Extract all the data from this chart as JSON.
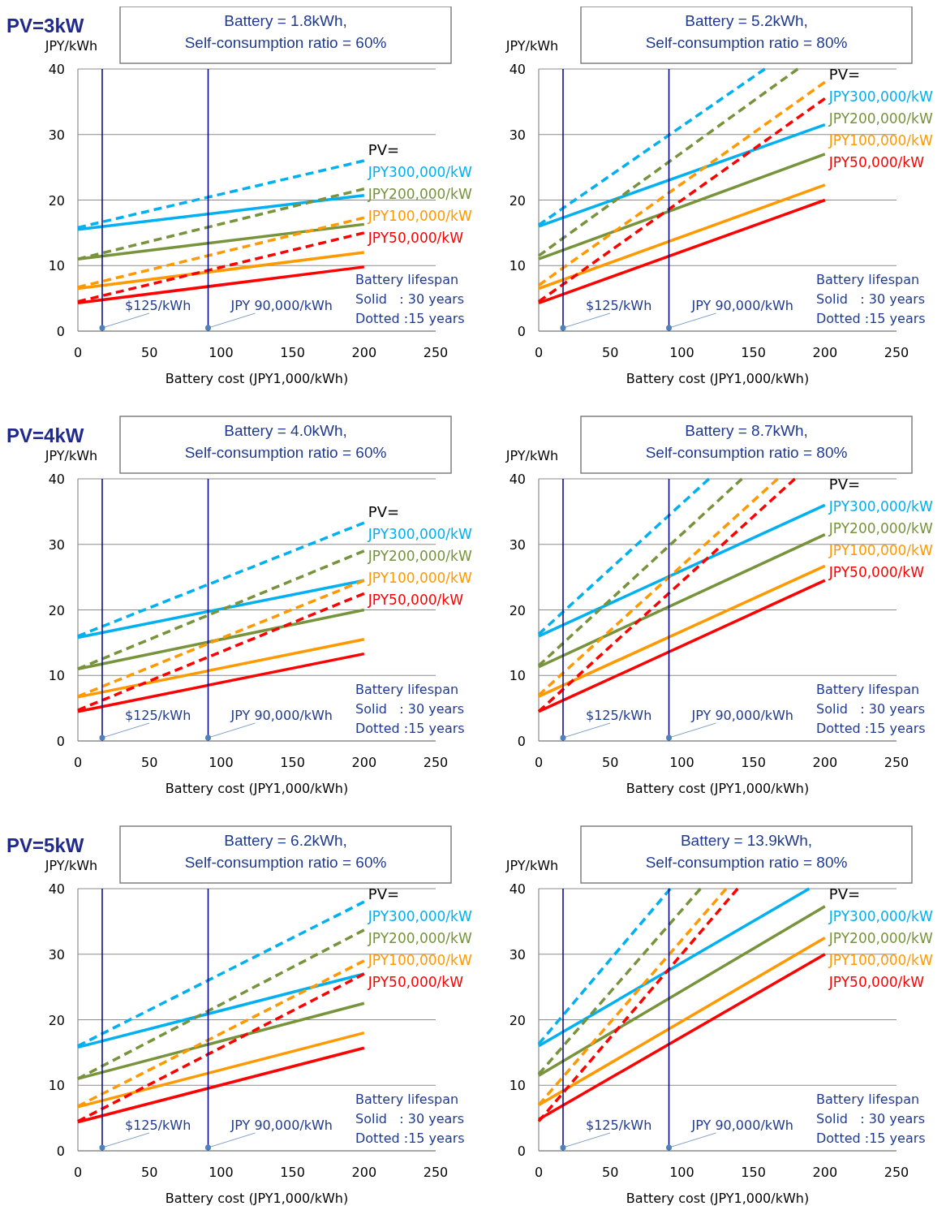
{
  "chart_data": [
    {
      "type": "line",
      "subtitle": "PV=3kW",
      "title": "Battery = 1.8kWh,\nSelf-consumption ratio = 60%",
      "xlabel": "Battery cost (JPY1,000/kWh)",
      "ylabel": "JPY/kWh",
      "xlim": [
        0,
        250
      ],
      "xticks": [
        0,
        50,
        100,
        150,
        200,
        250
      ],
      "ylim": [
        0,
        40
      ],
      "yticks": [
        0,
        10,
        20,
        30,
        40
      ],
      "grid": "y",
      "legend": "right",
      "legend_title": "PV=",
      "series": [
        {
          "name": "JPY300,000/kW",
          "color": "#00b0f0",
          "x": [
            0,
            200
          ],
          "values": [
            15.5,
            20.7
          ]
        },
        {
          "name": "JPY200,000/kW",
          "color": "#77933c",
          "x": [
            0,
            200
          ],
          "values": [
            11,
            16.3
          ]
        },
        {
          "name": "JPY100,000/kW",
          "color": "#ff9900",
          "x": [
            0,
            200
          ],
          "values": [
            6.5,
            12
          ]
        },
        {
          "name": "JPY50,000/kW",
          "color": "#ff0000",
          "x": [
            0,
            200
          ],
          "values": [
            4.3,
            9.8
          ]
        },
        {
          "color": "#00b0f0",
          "line_style": "dashed",
          "x": [
            0,
            200
          ],
          "values": [
            15.8,
            26
          ]
        },
        {
          "color": "#77933c",
          "line_style": "dashed",
          "x": [
            0,
            200
          ],
          "values": [
            11,
            21.7
          ]
        },
        {
          "color": "#ff9900",
          "line_style": "dashed",
          "x": [
            0,
            200
          ],
          "values": [
            6.7,
            17.3
          ]
        },
        {
          "color": "#ff0000",
          "line_style": "dashed",
          "x": [
            0,
            200
          ],
          "values": [
            4.5,
            15
          ]
        }
      ],
      "ref_lines": [
        {
          "axis": "x",
          "value": 17,
          "color": "#000080",
          "label": "$125/kWh"
        },
        {
          "axis": "x",
          "value": 91,
          "color": "#000080",
          "label": "JPY 90,000/kWh"
        }
      ],
      "annotations": [
        "Battery lifespan\nSolid   : 30 years\nDotted :15 years"
      ]
    },
    {
      "type": "line",
      "title": "Battery = 5.2kWh,\nSelf-consumption ratio = 80%",
      "xlabel": "Battery cost (JPY1,000/kWh)",
      "ylabel": "JPY/kWh",
      "xlim": [
        0,
        250
      ],
      "xticks": [
        0,
        50,
        100,
        150,
        200,
        250
      ],
      "ylim": [
        0,
        40
      ],
      "yticks": [
        0,
        10,
        20,
        30,
        40
      ],
      "grid": "y",
      "legend": "right",
      "legend_title": "PV=",
      "series": [
        {
          "name": "JPY300,000/kW",
          "color": "#00b0f0",
          "x": [
            0,
            200
          ],
          "values": [
            16,
            31.5
          ]
        },
        {
          "name": "JPY200,000/kW",
          "color": "#77933c",
          "x": [
            0,
            200
          ],
          "values": [
            11,
            27
          ]
        },
        {
          "name": "JPY100,000/kW",
          "color": "#ff9900",
          "x": [
            0,
            200
          ],
          "values": [
            6.5,
            22.3
          ]
        },
        {
          "name": "JPY50,000/kW",
          "color": "#ff0000",
          "x": [
            0,
            200
          ],
          "values": [
            4.3,
            20
          ]
        },
        {
          "color": "#00b0f0",
          "line_style": "dashed",
          "x": [
            0,
            158
          ],
          "values": [
            16.2,
            40
          ]
        },
        {
          "color": "#77933c",
          "line_style": "dashed",
          "x": [
            0,
            181
          ],
          "values": [
            11.5,
            40
          ]
        },
        {
          "color": "#ff9900",
          "line_style": "dashed",
          "x": [
            0,
            200
          ],
          "values": [
            7,
            38
          ]
        },
        {
          "color": "#ff0000",
          "line_style": "dashed",
          "x": [
            0,
            200
          ],
          "values": [
            4.5,
            35.5
          ]
        }
      ],
      "ref_lines": [
        {
          "axis": "x",
          "value": 17,
          "color": "#000080",
          "label": "$125/kWh"
        },
        {
          "axis": "x",
          "value": 91,
          "color": "#000080",
          "label": "JPY 90,000/kWh"
        }
      ],
      "annotations": [
        "Battery lifespan\nSolid   : 30 years\nDotted :15 years"
      ]
    },
    {
      "type": "line",
      "subtitle": "PV=4kW",
      "title": "Battery = 4.0kWh,\nSelf-consumption ratio = 60%",
      "xlabel": "Battery cost (JPY1,000/kWh)",
      "ylabel": "JPY/kWh",
      "xlim": [
        0,
        250
      ],
      "xticks": [
        0,
        50,
        100,
        150,
        200,
        250
      ],
      "ylim": [
        0,
        40
      ],
      "yticks": [
        0,
        10,
        20,
        30,
        40
      ],
      "grid": "y",
      "legend": "right",
      "legend_title": "PV=",
      "series": [
        {
          "name": "JPY300,000/kW",
          "color": "#00b0f0",
          "x": [
            0,
            200
          ],
          "values": [
            15.8,
            24.5
          ]
        },
        {
          "name": "JPY200,000/kW",
          "color": "#77933c",
          "x": [
            0,
            200
          ],
          "values": [
            11,
            20
          ]
        },
        {
          "name": "JPY100,000/kW",
          "color": "#ff9900",
          "x": [
            0,
            200
          ],
          "values": [
            6.7,
            15.5
          ]
        },
        {
          "name": "JPY50,000/kW",
          "color": "#ff0000",
          "x": [
            0,
            200
          ],
          "values": [
            4.5,
            13.3
          ]
        },
        {
          "color": "#00b0f0",
          "line_style": "dashed",
          "x": [
            0,
            200
          ],
          "values": [
            16,
            33.3
          ]
        },
        {
          "color": "#77933c",
          "line_style": "dashed",
          "x": [
            0,
            200
          ],
          "values": [
            11,
            29
          ]
        },
        {
          "color": "#ff9900",
          "line_style": "dashed",
          "x": [
            0,
            200
          ],
          "values": [
            6.8,
            24.5
          ]
        },
        {
          "color": "#ff0000",
          "line_style": "dashed",
          "x": [
            0,
            200
          ],
          "values": [
            4.7,
            22.5
          ]
        }
      ],
      "ref_lines": [
        {
          "axis": "x",
          "value": 17,
          "color": "#000080",
          "label": "$125/kWh"
        },
        {
          "axis": "x",
          "value": 91,
          "color": "#000080",
          "label": "JPY 90,000/kWh"
        }
      ],
      "annotations": [
        "Battery lifespan\nSolid   : 30 years\nDotted :15 years"
      ]
    },
    {
      "type": "line",
      "title": "Battery = 8.7kWh,\nSelf-consumption ratio = 80%",
      "xlabel": "Battery cost (JPY1,000/kWh)",
      "ylabel": "JPY/kWh",
      "xlim": [
        0,
        250
      ],
      "xticks": [
        0,
        50,
        100,
        150,
        200,
        250
      ],
      "ylim": [
        0,
        40
      ],
      "yticks": [
        0,
        10,
        20,
        30,
        40
      ],
      "grid": "y",
      "legend": "right",
      "legend_title": "PV=",
      "series": [
        {
          "name": "JPY300,000/kW",
          "color": "#00b0f0",
          "x": [
            0,
            200
          ],
          "values": [
            16,
            36
          ]
        },
        {
          "name": "JPY200,000/kW",
          "color": "#77933c",
          "x": [
            0,
            200
          ],
          "values": [
            11.3,
            31.5
          ]
        },
        {
          "name": "JPY100,000/kW",
          "color": "#ff9900",
          "x": [
            0,
            200
          ],
          "values": [
            6.8,
            26.7
          ]
        },
        {
          "name": "JPY50,000/kW",
          "color": "#ff0000",
          "x": [
            0,
            200
          ],
          "values": [
            4.5,
            24.5
          ]
        },
        {
          "color": "#00b0f0",
          "line_style": "dashed",
          "x": [
            0,
            119
          ],
          "values": [
            16.3,
            40
          ]
        },
        {
          "color": "#77933c",
          "line_style": "dashed",
          "x": [
            0,
            142
          ],
          "values": [
            11.5,
            40
          ]
        },
        {
          "color": "#ff9900",
          "line_style": "dashed",
          "x": [
            0,
            167
          ],
          "values": [
            7,
            40
          ]
        },
        {
          "color": "#ff0000",
          "line_style": "dashed",
          "x": [
            0,
            179
          ],
          "values": [
            4.5,
            40
          ]
        }
      ],
      "ref_lines": [
        {
          "axis": "x",
          "value": 17,
          "color": "#000080",
          "label": "$125/kWh"
        },
        {
          "axis": "x",
          "value": 91,
          "color": "#000080",
          "label": "JPY 90,000/kWh"
        }
      ],
      "annotations": [
        "Battery lifespan\nSolid   : 30 years\nDotted :15 years"
      ]
    },
    {
      "type": "line",
      "subtitle": "PV=5kW",
      "title": "Battery = 6.2kWh,\nSelf-consumption ratio = 60%",
      "xlabel": "Battery cost (JPY1,000/kWh)",
      "ylabel": "JPY/kWh",
      "xlim": [
        0,
        250
      ],
      "xticks": [
        0,
        50,
        100,
        150,
        200,
        250
      ],
      "ylim": [
        0,
        40
      ],
      "yticks": [
        0,
        10,
        20,
        30,
        40
      ],
      "grid": "y",
      "legend": "right",
      "legend_title": "PV=",
      "series": [
        {
          "name": "JPY300,000/kW",
          "color": "#00b0f0",
          "x": [
            0,
            200
          ],
          "values": [
            15.8,
            27
          ]
        },
        {
          "name": "JPY200,000/kW",
          "color": "#77933c",
          "x": [
            0,
            200
          ],
          "values": [
            11,
            22.5
          ]
        },
        {
          "name": "JPY100,000/kW",
          "color": "#ff9900",
          "x": [
            0,
            200
          ],
          "values": [
            6.7,
            18
          ]
        },
        {
          "name": "JPY50,000/kW",
          "color": "#ff0000",
          "x": [
            0,
            200
          ],
          "values": [
            4.4,
            15.7
          ]
        },
        {
          "color": "#00b0f0",
          "line_style": "dashed",
          "x": [
            0,
            200
          ],
          "values": [
            16,
            38
          ]
        },
        {
          "color": "#77933c",
          "line_style": "dashed",
          "x": [
            0,
            200
          ],
          "values": [
            11,
            33.7
          ]
        },
        {
          "color": "#ff9900",
          "line_style": "dashed",
          "x": [
            0,
            200
          ],
          "values": [
            6.8,
            29
          ]
        },
        {
          "color": "#ff0000",
          "line_style": "dashed",
          "x": [
            0,
            200
          ],
          "values": [
            4.5,
            27
          ]
        }
      ],
      "ref_lines": [
        {
          "axis": "x",
          "value": 17,
          "color": "#000080",
          "label": "$125/kWh"
        },
        {
          "axis": "x",
          "value": 91,
          "color": "#000080",
          "label": "JPY 90,000/kWh"
        }
      ],
      "annotations": [
        "Battery lifespan\nSolid   : 30 years\nDotted :15 years"
      ]
    },
    {
      "type": "line",
      "title": "Battery = 13.9kWh,\nSelf-consumption ratio = 80%",
      "xlabel": "Battery cost (JPY1,000/kWh)",
      "ylabel": "JPY/kWh",
      "xlim": [
        0,
        250
      ],
      "xticks": [
        0,
        50,
        100,
        150,
        200,
        250
      ],
      "ylim": [
        0,
        40
      ],
      "yticks": [
        0,
        10,
        20,
        30,
        40
      ],
      "grid": "y",
      "legend": "right",
      "legend_title": "PV=",
      "series": [
        {
          "name": "JPY300,000/kW",
          "color": "#00b0f0",
          "x": [
            0,
            189
          ],
          "values": [
            16,
            40
          ]
        },
        {
          "name": "JPY200,000/kW",
          "color": "#77933c",
          "x": [
            0,
            200
          ],
          "values": [
            11.5,
            37.3
          ]
        },
        {
          "name": "JPY100,000/kW",
          "color": "#ff9900",
          "x": [
            0,
            200
          ],
          "values": [
            7,
            32.5
          ]
        },
        {
          "name": "JPY50,000/kW",
          "color": "#ff0000",
          "x": [
            0,
            200
          ],
          "values": [
            4.8,
            30
          ]
        },
        {
          "color": "#00b0f0",
          "line_style": "dashed",
          "x": [
            0,
            92
          ],
          "values": [
            16.3,
            40
          ]
        },
        {
          "color": "#77933c",
          "line_style": "dashed",
          "x": [
            0,
            113
          ],
          "values": [
            11.7,
            40
          ]
        },
        {
          "color": "#ff9900",
          "line_style": "dashed",
          "x": [
            0,
            131
          ],
          "values": [
            7,
            40
          ]
        },
        {
          "color": "#ff0000",
          "line_style": "dashed",
          "x": [
            0,
            139
          ],
          "values": [
            4.5,
            40
          ]
        }
      ],
      "ref_lines": [
        {
          "axis": "x",
          "value": 17,
          "color": "#000080",
          "label": "$125/kWh"
        },
        {
          "axis": "x",
          "value": 91,
          "color": "#000080",
          "label": "JPY 90,000/kWh"
        }
      ],
      "annotations": [
        "Battery lifespan\nSolid   : 30 years\nDotted :15 years"
      ]
    }
  ]
}
